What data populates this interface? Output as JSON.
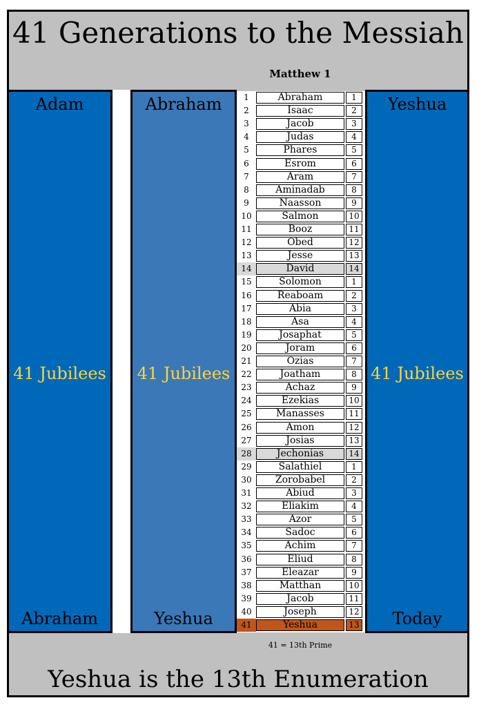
{
  "title": "41 Generations to the Messiah",
  "subtitle": "Matthew 1",
  "panels": {
    "left": {
      "top": "Adam",
      "middle": "41 Jubilees",
      "bottom": "Abraham"
    },
    "mid": {
      "top": "Abraham",
      "middle": "41 Jubilees",
      "bottom": "Yeshua"
    },
    "right": {
      "top": "Yeshua",
      "middle": "41 Jubilees",
      "bottom": "Today"
    }
  },
  "colors": {
    "panel": "#0068b8",
    "panel_mid": "#3b78b8",
    "jubilee_text": "#ffd43a",
    "highlight": "#d9d9d9",
    "final": "#c0561b",
    "frame": "#c0c0c0"
  },
  "generations": [
    {
      "n": "1",
      "name": "Abraham",
      "cycle": "1"
    },
    {
      "n": "2",
      "name": "Isaac",
      "cycle": "2"
    },
    {
      "n": "3",
      "name": "Jacob",
      "cycle": "3"
    },
    {
      "n": "4",
      "name": "Judas",
      "cycle": "4"
    },
    {
      "n": "5",
      "name": "Phares",
      "cycle": "5"
    },
    {
      "n": "6",
      "name": "Esrom",
      "cycle": "6"
    },
    {
      "n": "7",
      "name": "Aram",
      "cycle": "7"
    },
    {
      "n": "8",
      "name": "Aminadab",
      "cycle": "8"
    },
    {
      "n": "9",
      "name": "Naasson",
      "cycle": "9"
    },
    {
      "n": "10",
      "name": "Salmon",
      "cycle": "10"
    },
    {
      "n": "11",
      "name": "Booz",
      "cycle": "11"
    },
    {
      "n": "12",
      "name": "Obed",
      "cycle": "12"
    },
    {
      "n": "13",
      "name": "Jesse",
      "cycle": "13"
    },
    {
      "n": "14",
      "name": "David",
      "cycle": "14",
      "highlight": true
    },
    {
      "n": "15",
      "name": "Solomon",
      "cycle": "1"
    },
    {
      "n": "16",
      "name": "Reaboam",
      "cycle": "2"
    },
    {
      "n": "17",
      "name": "Abia",
      "cycle": "3"
    },
    {
      "n": "18",
      "name": "Asa",
      "cycle": "4"
    },
    {
      "n": "19",
      "name": "Josaphat",
      "cycle": "5"
    },
    {
      "n": "20",
      "name": "Joram",
      "cycle": "6"
    },
    {
      "n": "21",
      "name": "Ozias",
      "cycle": "7"
    },
    {
      "n": "22",
      "name": "Joatham",
      "cycle": "8"
    },
    {
      "n": "23",
      "name": "Achaz",
      "cycle": "9"
    },
    {
      "n": "24",
      "name": "Ezekias",
      "cycle": "10"
    },
    {
      "n": "25",
      "name": "Manasses",
      "cycle": "11"
    },
    {
      "n": "26",
      "name": "Amon",
      "cycle": "12"
    },
    {
      "n": "27",
      "name": "Josias",
      "cycle": "13"
    },
    {
      "n": "28",
      "name": "Jechonias",
      "cycle": "14",
      "highlight": true
    },
    {
      "n": "29",
      "name": "Salathiel",
      "cycle": "1"
    },
    {
      "n": "30",
      "name": "Zorobabel",
      "cycle": "2"
    },
    {
      "n": "31",
      "name": "Abiud",
      "cycle": "3"
    },
    {
      "n": "32",
      "name": "Eliakim",
      "cycle": "4"
    },
    {
      "n": "33",
      "name": "Azor",
      "cycle": "5"
    },
    {
      "n": "34",
      "name": "Sadoc",
      "cycle": "6"
    },
    {
      "n": "35",
      "name": "Achim",
      "cycle": "7"
    },
    {
      "n": "36",
      "name": "Eliud",
      "cycle": "8"
    },
    {
      "n": "37",
      "name": "Eleazar",
      "cycle": "9"
    },
    {
      "n": "38",
      "name": "Matthan",
      "cycle": "10"
    },
    {
      "n": "39",
      "name": "Jacob",
      "cycle": "11"
    },
    {
      "n": "40",
      "name": "Joseph",
      "cycle": "12"
    },
    {
      "n": "41",
      "name": "Yeshua",
      "cycle": "13",
      "final": true
    }
  ],
  "note": "41  = 13th Prime",
  "footer": "Yeshua is the 13th Enumeration"
}
